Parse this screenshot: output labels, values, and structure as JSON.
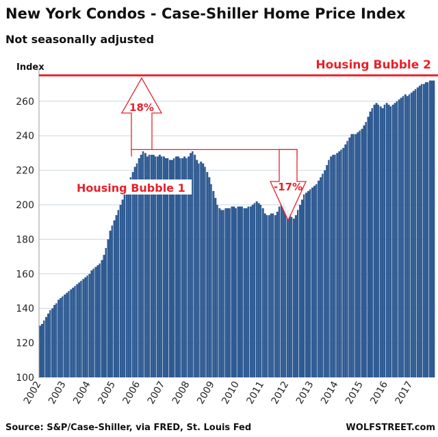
{
  "chart_data": {
    "type": "bar",
    "title": "New York Condos - Case-Shiller Home Price Index",
    "subtitle": "Not seasonally adjusted",
    "ylabel": "Index",
    "xlabel": "",
    "ylim": [
      100,
      275
    ],
    "yticks": [
      100,
      120,
      140,
      160,
      180,
      200,
      220,
      240,
      260
    ],
    "xticks": [
      "2002",
      "2003",
      "2004",
      "2005",
      "2006",
      "2007",
      "2008",
      "2009",
      "2010",
      "2011",
      "2012",
      "2013",
      "2014",
      "2015",
      "2016",
      "2017"
    ],
    "grid": true,
    "start_year": 2002,
    "frequency": "monthly",
    "values": [
      130,
      131,
      133,
      135,
      137,
      139,
      140,
      142,
      143,
      145,
      146,
      147,
      148,
      149,
      150,
      151,
      152,
      153,
      154,
      155,
      156,
      157,
      158,
      159,
      160,
      162,
      163,
      164,
      165,
      166,
      168,
      171,
      175,
      180,
      185,
      188,
      191,
      194,
      197,
      200,
      203,
      206,
      208,
      212,
      216,
      219,
      222,
      224,
      227,
      229,
      231,
      230,
      228,
      229,
      229,
      229,
      228,
      228,
      229,
      228,
      228,
      227,
      227,
      226,
      226,
      227,
      228,
      228,
      227,
      227,
      228,
      227,
      228,
      230,
      231,
      229,
      226,
      224,
      225,
      224,
      222,
      219,
      216,
      212,
      208,
      204,
      200,
      198,
      197,
      197,
      198,
      198,
      198,
      199,
      199,
      198,
      199,
      199,
      199,
      198,
      198,
      199,
      199,
      200,
      201,
      202,
      201,
      200,
      198,
      195,
      194,
      194,
      195,
      195,
      194,
      196,
      199,
      200,
      201,
      199,
      197,
      195,
      193,
      192,
      194,
      197,
      200,
      203,
      206,
      207,
      208,
      209,
      210,
      211,
      212,
      214,
      216,
      218,
      220,
      223,
      226,
      228,
      229,
      229,
      230,
      231,
      232,
      233,
      235,
      237,
      239,
      241,
      241,
      241,
      242,
      243,
      244,
      246,
      248,
      251,
      254,
      256,
      258,
      259,
      258,
      257,
      256,
      258,
      259,
      258,
      257,
      258,
      259,
      260,
      261,
      262,
      263,
      264,
      263,
      264,
      265,
      266,
      267,
      268,
      269,
      270,
      270,
      271,
      271,
      272,
      272,
      272
    ],
    "annotations": {
      "bubble1_label": "Housing Bubble 1",
      "bubble2_label": "Housing Bubble 2",
      "bubble2_level": 275,
      "bubble1_level": 232,
      "rise_label": "18%",
      "drop_label": "-17%"
    },
    "source": "Source: S&P/Case-Shiller, via FRED,  St. Louis Fed",
    "brand": "WOLFSTREET.com",
    "colors": {
      "bar": "#2e5a92",
      "annotation": "#e8202a",
      "grid": "#c9d6e6"
    }
  }
}
